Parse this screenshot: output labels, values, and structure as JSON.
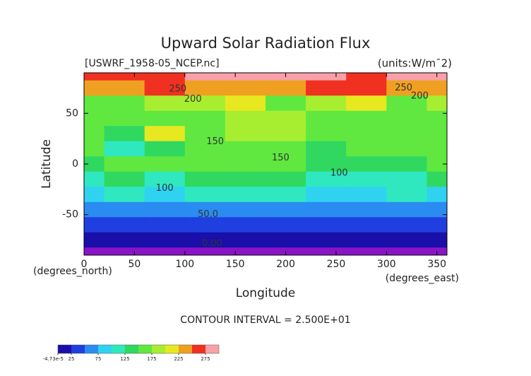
{
  "chart_data": {
    "type": "contour",
    "title": "Upward Solar Radiation Flux",
    "file_label": "[USWRF_1958-05_NCEP.nc]",
    "units_label": "(units:W/m¯2)",
    "x_label": "Longitude",
    "y_label": "Latitude",
    "x_unit_label": "(degrees_east)",
    "y_unit_label": "(degrees_north)",
    "contour_interval_label": "CONTOUR INTERVAL = 2.500E+01",
    "xlim": [
      0,
      360
    ],
    "ylim": [
      -90,
      90
    ],
    "xticks": [
      0,
      50,
      100,
      150,
      200,
      250,
      300,
      350
    ],
    "yticks": [
      -50,
      0,
      50
    ],
    "x": [
      0,
      40,
      80,
      120,
      160,
      200,
      240,
      280,
      320,
      360
    ],
    "y": [
      90,
      75,
      60,
      45,
      30,
      15,
      0,
      -15,
      -30,
      -45,
      -60,
      -75,
      -90
    ],
    "z": [
      [
        270,
        270,
        270,
        280,
        280,
        280,
        280,
        270,
        280,
        280
      ],
      [
        240,
        240,
        250,
        230,
        230,
        240,
        260,
        250,
        230,
        240
      ],
      [
        170,
        160,
        180,
        190,
        200,
        170,
        180,
        220,
        170,
        180
      ],
      [
        160,
        150,
        170,
        170,
        180,
        190,
        160,
        150,
        170,
        150
      ],
      [
        150,
        140,
        210,
        150,
        190,
        180,
        170,
        160,
        150,
        160
      ],
      [
        160,
        120,
        140,
        170,
        150,
        160,
        140,
        150,
        150,
        160
      ],
      [
        140,
        150,
        160,
        150,
        160,
        150,
        140,
        130,
        140,
        150
      ],
      [
        120,
        130,
        110,
        140,
        130,
        140,
        120,
        110,
        120,
        130
      ],
      [
        90,
        100,
        90,
        100,
        110,
        100,
        90,
        90,
        100,
        90
      ],
      [
        70,
        70,
        70,
        60,
        70,
        70,
        70,
        60,
        70,
        70
      ],
      [
        40,
        40,
        40,
        40,
        40,
        40,
        40,
        40,
        40,
        40
      ],
      [
        20,
        20,
        20,
        20,
        20,
        20,
        20,
        20,
        20,
        20
      ],
      [
        0,
        0,
        0,
        0,
        0,
        0,
        0,
        0,
        0,
        0
      ]
    ],
    "contour_labels": [
      {
        "text": "250",
        "lon": 93,
        "lat": 74
      },
      {
        "text": "200",
        "lon": 108,
        "lat": 64
      },
      {
        "text": "250",
        "lon": 317,
        "lat": 75
      },
      {
        "text": "200",
        "lon": 333,
        "lat": 67
      },
      {
        "text": "150",
        "lon": 130,
        "lat": 22
      },
      {
        "text": "150",
        "lon": 195,
        "lat": 6
      },
      {
        "text": "100",
        "lon": 253,
        "lat": -9
      },
      {
        "text": "100",
        "lon": 80,
        "lat": -24
      },
      {
        "text": "50.0",
        "lon": 123,
        "lat": -50
      },
      {
        "text": "0.00",
        "lon": 127,
        "lat": -79
      }
    ],
    "colorbar": {
      "levels": [
        0,
        25,
        50,
        75,
        100,
        125,
        150,
        175,
        200,
        225,
        250,
        275,
        300
      ],
      "colors": [
        "#1a0fa8",
        "#1f3fe0",
        "#2a8cf0",
        "#2fd3f0",
        "#2fe8c0",
        "#30d860",
        "#60e840",
        "#a8ee30",
        "#e8e820",
        "#f0a020",
        "#f03020",
        "#f8a0a8"
      ],
      "under_color": "#8a14c8",
      "ticks": [
        {
          "value": -4.73e-05,
          "label": "-4.73e-5"
        },
        25,
        75,
        125,
        175,
        225,
        275
      ]
    }
  }
}
